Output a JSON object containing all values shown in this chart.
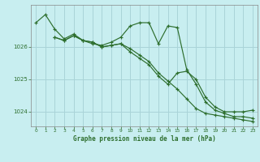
{
  "title": "Graphe pression niveau de la mer (hPa)",
  "bg_color": "#c8eef0",
  "grid_color": "#aad4d8",
  "line_color": "#2d6e2d",
  "xlim": [
    -0.5,
    23.5
  ],
  "ylim": [
    1023.55,
    1027.3
  ],
  "yticks": [
    1024,
    1025,
    1026
  ],
  "xticks": [
    0,
    1,
    2,
    3,
    4,
    5,
    6,
    7,
    8,
    9,
    10,
    11,
    12,
    13,
    14,
    15,
    16,
    17,
    18,
    19,
    20,
    21,
    22,
    23
  ],
  "series": [
    {
      "x": [
        0,
        1,
        2,
        3,
        4,
        5,
        6,
        7,
        8,
        9,
        10,
        11,
        12,
        13,
        14,
        15,
        16,
        17,
        18,
        19,
        20,
        21,
        22,
        23
      ],
      "y": [
        1026.75,
        1027.0,
        1026.55,
        1026.25,
        1026.4,
        1026.2,
        1026.1,
        1026.05,
        1026.15,
        1026.3,
        1026.65,
        1026.75,
        1026.75,
        1026.1,
        1026.65,
        1026.6,
        1025.3,
        1024.85,
        1024.3,
        1024.05,
        1023.95,
        1023.85,
        1023.85,
        1023.8
      ]
    },
    {
      "x": [
        2,
        3,
        4,
        5,
        6,
        7,
        8,
        9,
        10,
        11,
        12,
        13,
        14,
        15,
        16,
        17,
        18,
        19,
        20,
        21,
        22,
        23
      ],
      "y": [
        1026.3,
        1026.2,
        1026.35,
        1026.2,
        1026.15,
        1026.0,
        1026.05,
        1026.1,
        1025.85,
        1025.65,
        1025.45,
        1025.1,
        1024.85,
        1025.2,
        1025.25,
        1025.0,
        1024.45,
        1024.15,
        1024.0,
        1024.0,
        1024.0,
        1024.05
      ]
    },
    {
      "x": [
        2,
        3,
        4,
        5,
        6,
        7,
        8,
        9,
        10,
        11,
        12,
        13,
        14,
        15,
        16,
        17,
        18,
        19,
        20,
        21,
        22,
        23
      ],
      "y": [
        1026.3,
        1026.2,
        1026.35,
        1026.2,
        1026.15,
        1026.0,
        1026.05,
        1026.1,
        1025.95,
        1025.75,
        1025.55,
        1025.2,
        1024.95,
        1024.7,
        1024.4,
        1024.1,
        1023.95,
        1023.9,
        1023.85,
        1023.8,
        1023.75,
        1023.7
      ]
    }
  ]
}
